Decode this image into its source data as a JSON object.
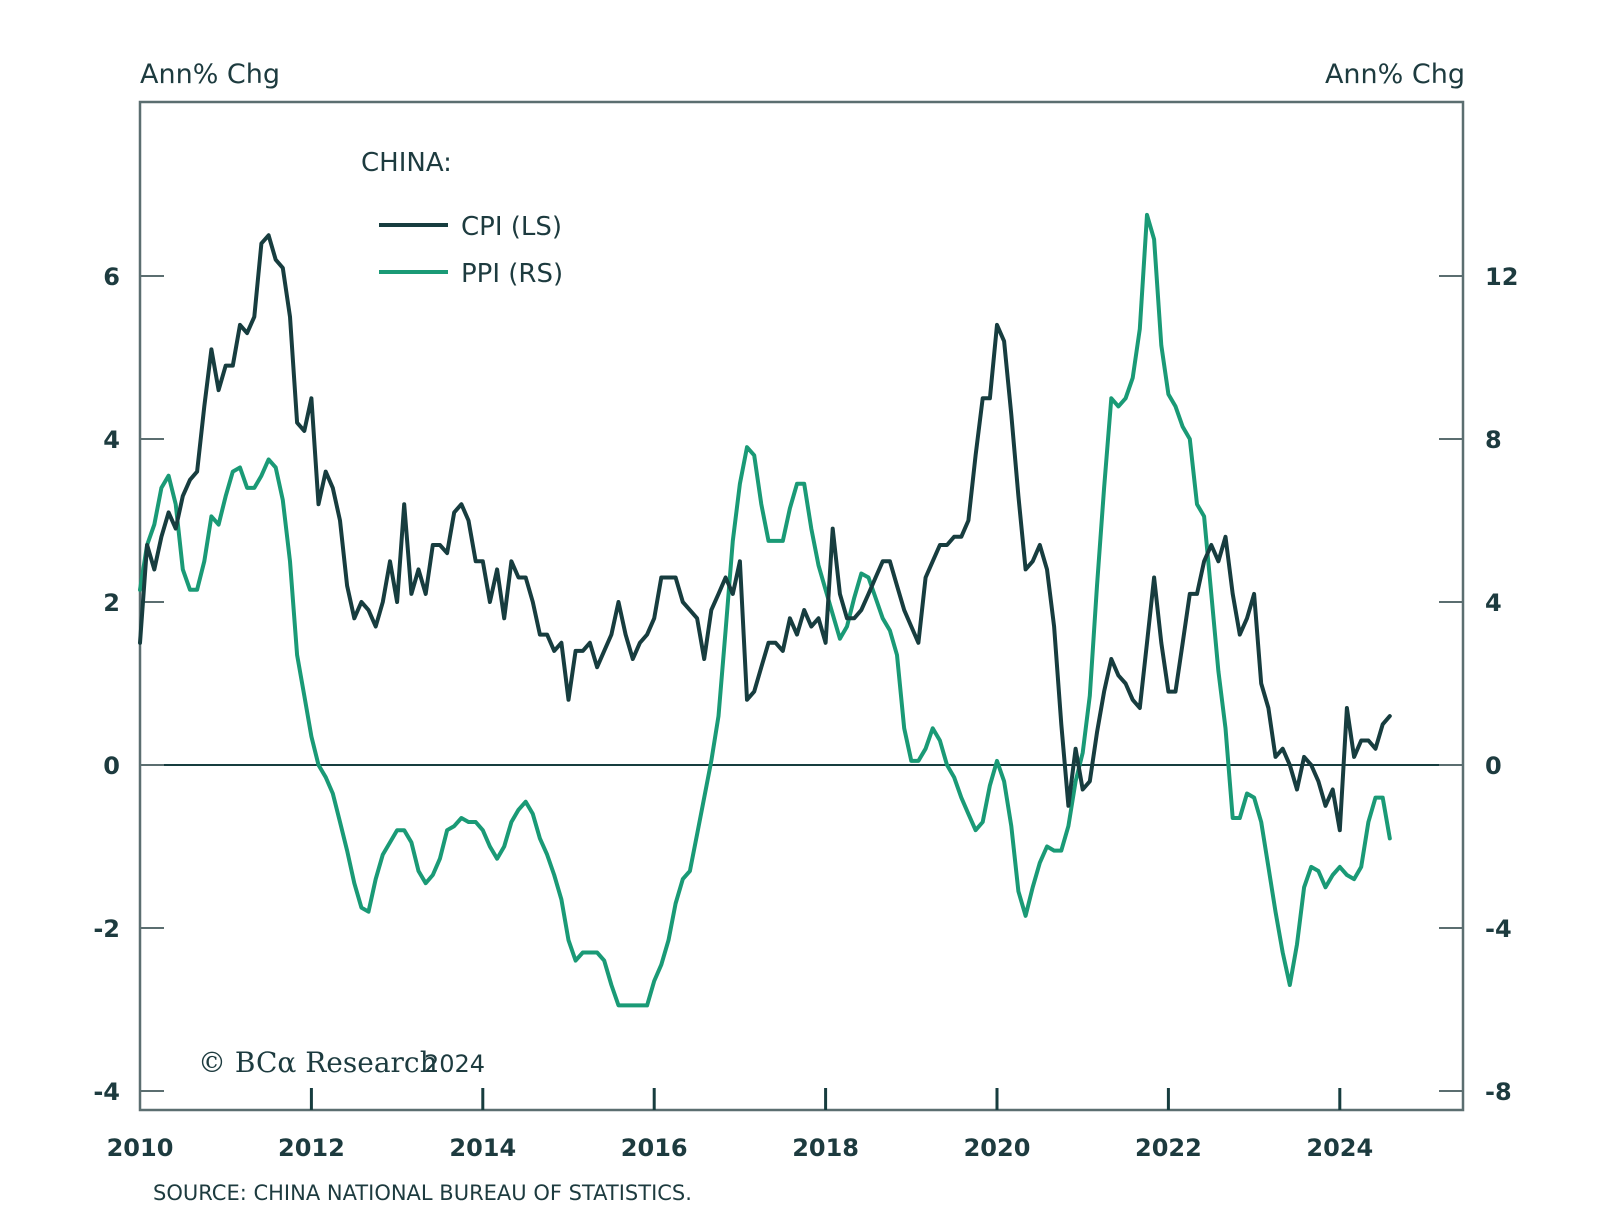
{
  "chart_data": {
    "type": "line",
    "title": "CHINA:",
    "ylabel_left": "Ann% Chg",
    "ylabel_right": "Ann% Chg",
    "xlabel": "",
    "x_start": 2010.0,
    "x_step_months": 1,
    "xlim": [
      2010,
      2025.4
    ],
    "ylim_left": [
      -4.5,
      8.2
    ],
    "ylim_right": [
      -9,
      16.4
    ],
    "yticks_left": [
      6,
      4,
      2,
      0,
      -2,
      -4
    ],
    "yticks_left_labels": [
      "6",
      "4",
      "2",
      "0",
      "-2",
      "-4"
    ],
    "yticks_right": [
      12,
      8,
      4,
      0,
      -4,
      -8
    ],
    "yticks_right_labels": [
      "12",
      "8",
      "4",
      "0",
      "-4",
      "-8"
    ],
    "xticks": [
      2010,
      2012,
      2014,
      2016,
      2018,
      2020,
      2022,
      2024
    ],
    "xticks_labels": [
      "2010",
      "2012",
      "2014",
      "2016",
      "2018",
      "2020",
      "2022",
      "2024"
    ],
    "zero_line": true,
    "grid": false,
    "legend_position": "top-left",
    "series": [
      {
        "name": "CPI (LS)",
        "axis": "left",
        "color": "#173d3f",
        "values": [
          1.5,
          2.7,
          2.4,
          2.8,
          3.1,
          2.9,
          3.3,
          3.5,
          3.6,
          4.4,
          5.1,
          4.6,
          4.9,
          4.9,
          5.4,
          5.3,
          5.5,
          6.4,
          6.5,
          6.2,
          6.1,
          5.5,
          4.2,
          4.1,
          4.5,
          3.2,
          3.6,
          3.4,
          3.0,
          2.2,
          1.8,
          2.0,
          1.9,
          1.7,
          2.0,
          2.5,
          2.0,
          3.2,
          2.1,
          2.4,
          2.1,
          2.7,
          2.7,
          2.6,
          3.1,
          3.2,
          3.0,
          2.5,
          2.5,
          2.0,
          2.4,
          1.8,
          2.5,
          2.3,
          2.3,
          2.0,
          1.6,
          1.6,
          1.4,
          1.5,
          0.8,
          1.4,
          1.4,
          1.5,
          1.2,
          1.4,
          1.6,
          2.0,
          1.6,
          1.3,
          1.5,
          1.6,
          1.8,
          2.3,
          2.3,
          2.3,
          2.0,
          1.9,
          1.8,
          1.3,
          1.9,
          2.1,
          2.3,
          2.1,
          2.5,
          0.8,
          0.9,
          1.2,
          1.5,
          1.5,
          1.4,
          1.8,
          1.6,
          1.9,
          1.7,
          1.8,
          1.5,
          2.9,
          2.1,
          1.8,
          1.8,
          1.9,
          2.1,
          2.3,
          2.5,
          2.5,
          2.2,
          1.9,
          1.7,
          1.5,
          2.3,
          2.5,
          2.7,
          2.7,
          2.8,
          2.8,
          3.0,
          3.8,
          4.5,
          4.5,
          5.4,
          5.2,
          4.3,
          3.3,
          2.4,
          2.5,
          2.7,
          2.4,
          1.7,
          0.5,
          -0.5,
          0.2,
          -0.3,
          -0.2,
          0.4,
          0.9,
          1.3,
          1.1,
          1.0,
          0.8,
          0.7,
          1.5,
          2.3,
          1.5,
          0.9,
          0.9,
          1.5,
          2.1,
          2.1,
          2.5,
          2.7,
          2.5,
          2.8,
          2.1,
          1.6,
          1.8,
          2.1,
          1.0,
          0.7,
          0.1,
          0.2,
          0.0,
          -0.3,
          0.1,
          0.0,
          -0.2,
          -0.5,
          -0.3,
          -0.8,
          0.7,
          0.1,
          0.3,
          0.3,
          0.2,
          0.5,
          0.6
        ]
      },
      {
        "name": "PPI (RS)",
        "axis": "right",
        "color": "#1a9a76",
        "values": [
          4.3,
          5.4,
          5.9,
          6.8,
          7.1,
          6.4,
          4.8,
          4.3,
          4.3,
          5.0,
          6.1,
          5.9,
          6.6,
          7.2,
          7.3,
          6.8,
          6.8,
          7.1,
          7.5,
          7.3,
          6.5,
          5.0,
          2.7,
          1.7,
          0.7,
          0.0,
          -0.3,
          -0.7,
          -1.4,
          -2.1,
          -2.9,
          -3.5,
          -3.6,
          -2.8,
          -2.2,
          -1.9,
          -1.6,
          -1.6,
          -1.9,
          -2.6,
          -2.9,
          -2.7,
          -2.3,
          -1.6,
          -1.5,
          -1.3,
          -1.4,
          -1.4,
          -1.6,
          -2.0,
          -2.3,
          -2.0,
          -1.4,
          -1.1,
          -0.9,
          -1.2,
          -1.8,
          -2.2,
          -2.7,
          -3.3,
          -4.3,
          -4.8,
          -4.6,
          -4.6,
          -4.6,
          -4.8,
          -5.4,
          -5.9,
          -5.9,
          -5.9,
          -5.9,
          -5.9,
          -5.3,
          -4.9,
          -4.3,
          -3.4,
          -2.8,
          -2.6,
          -1.7,
          -0.8,
          0.1,
          1.2,
          3.3,
          5.5,
          6.9,
          7.8,
          7.6,
          6.4,
          5.5,
          5.5,
          5.5,
          6.3,
          6.9,
          6.9,
          5.8,
          4.9,
          4.3,
          3.7,
          3.1,
          3.4,
          4.1,
          4.7,
          4.6,
          4.1,
          3.6,
          3.3,
          2.7,
          0.9,
          0.1,
          0.1,
          0.4,
          0.9,
          0.6,
          0.0,
          -0.3,
          -0.8,
          -1.2,
          -1.6,
          -1.4,
          -0.5,
          0.1,
          -0.4,
          -1.5,
          -3.1,
          -3.7,
          -3.0,
          -2.4,
          -2.0,
          -2.1,
          -2.1,
          -1.5,
          -0.4,
          0.3,
          1.7,
          4.4,
          6.8,
          9.0,
          8.8,
          9.0,
          9.5,
          10.7,
          13.5,
          12.9,
          10.3,
          9.1,
          8.8,
          8.3,
          8.0,
          6.4,
          6.1,
          4.2,
          2.3,
          0.9,
          -1.3,
          -1.3,
          -0.7,
          -0.8,
          -1.4,
          -2.5,
          -3.6,
          -4.6,
          -5.4,
          -4.4,
          -3.0,
          -2.5,
          -2.6,
          -3.0,
          -2.7,
          -2.5,
          -2.7,
          -2.8,
          -2.5,
          -1.4,
          -0.8,
          -0.8,
          -1.8
        ]
      }
    ],
    "legend": {
      "title": "CHINA:",
      "entries": [
        "CPI (LS)",
        "PPI (RS)"
      ]
    },
    "annotations": [
      "© BCA Research 2024"
    ],
    "source": "SOURCE: CHINA NATIONAL BUREAU OF STATISTICS."
  },
  "labels": {
    "left_axis_title": "Ann% Chg",
    "right_axis_title": "Ann% Chg",
    "legend_title": "CHINA:",
    "legend_cpi": "CPI (LS)",
    "legend_ppi": "PPI (RS)",
    "watermark_brand": "© BCα Research",
    "watermark_year": "2024",
    "source": "SOURCE: CHINA NATIONAL BUREAU OF STATISTICS."
  },
  "colors": {
    "cpi": "#173d3f",
    "ppi": "#1a9a76",
    "axis": "#5b6e70",
    "text": "#1d3b3f"
  }
}
